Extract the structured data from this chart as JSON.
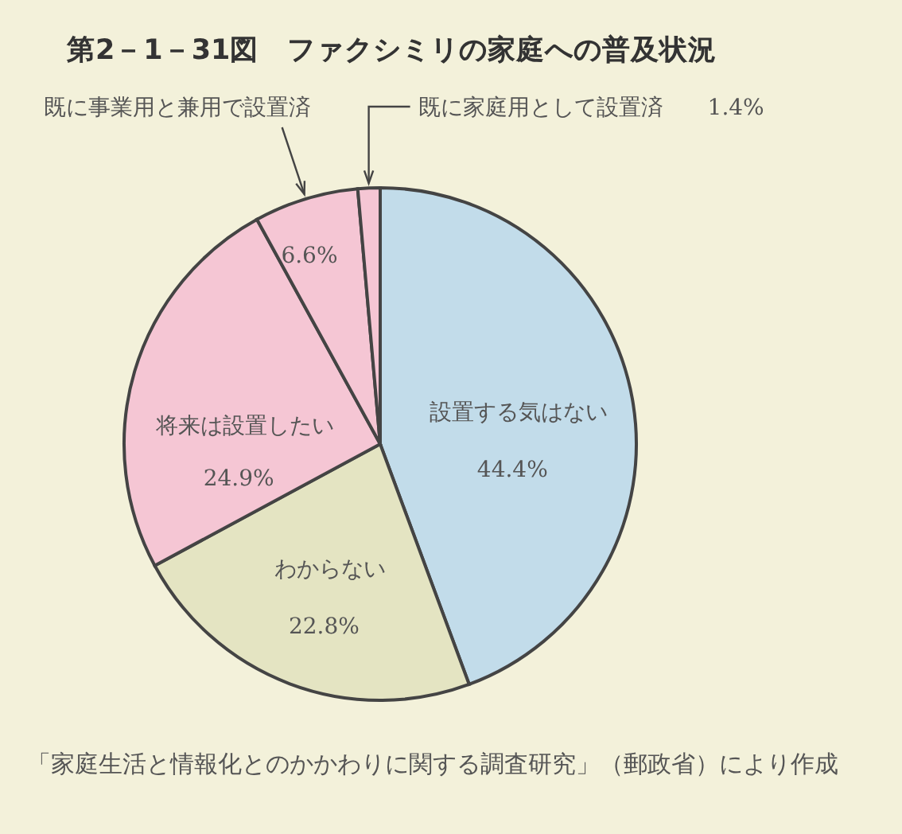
{
  "chart_data": {
    "type": "pie",
    "title": "第2－1－31図　ファクシミリの家庭への普及状況",
    "categories": [
      "設置する気はない",
      "わからない",
      "将来は設置したい",
      "既に事業用と兼用で設置済",
      "既に家庭用として設置済"
    ],
    "values": [
      44.4,
      22.8,
      24.9,
      6.6,
      1.4
    ],
    "colors": [
      "#c2dcea",
      "#e4e4c2",
      "#f5c6d4",
      "#f5c6d4",
      "#f5c6d4"
    ],
    "value_labels": [
      "44.4%",
      "22.8%",
      "24.9%",
      "6.6%",
      "1.4%"
    ],
    "annotations": [
      "「家庭生活と情報化とのかかわりに関する調査研究」（郵政省）により作成"
    ]
  }
}
